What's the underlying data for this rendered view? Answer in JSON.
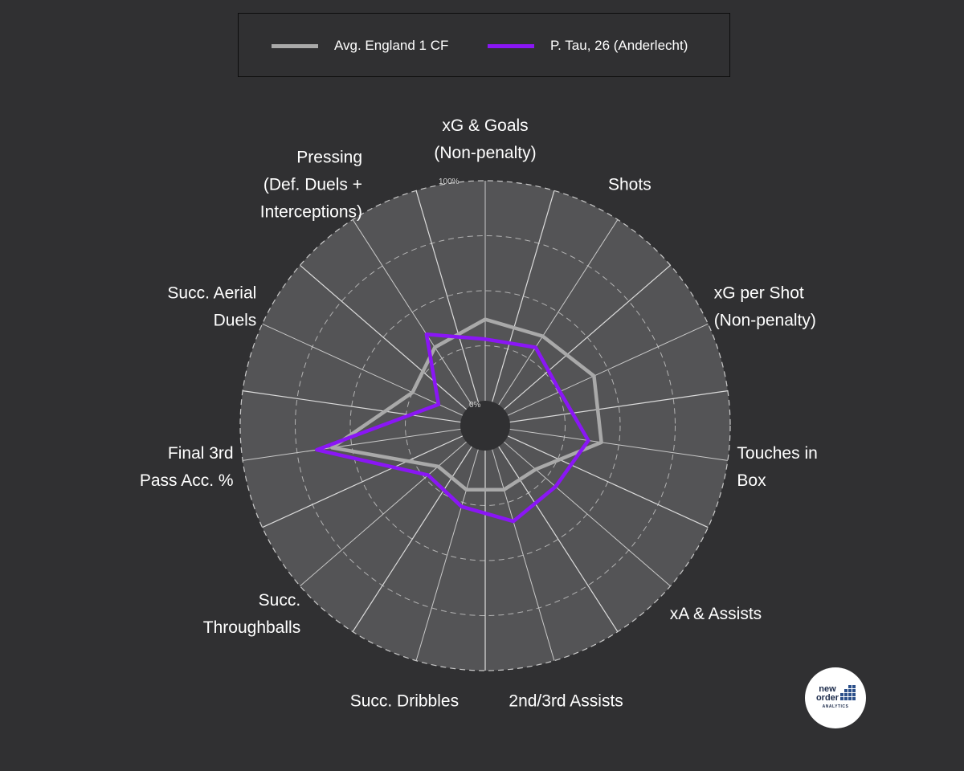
{
  "legend": {
    "items": [
      {
        "label": "Avg. England 1 CF",
        "color": "#a9a9a9"
      },
      {
        "label": "P. Tau, 26 (Anderlecht)",
        "color": "#8a16f5"
      }
    ]
  },
  "chart_data": {
    "type": "radar",
    "categories": [
      "xG & Goals\n(Non-penalty)",
      "Shots",
      "xG per Shot\n(Non-penalty)",
      "Touches in\nBox",
      "xA & Assists",
      "2nd/3rd Assists",
      "Succ. Dribbles",
      "Succ.\nThroughballs",
      "Final 3rd\nPass Acc. %",
      "Succ. Aerial\nDuels",
      "Pressing\n(Def. Duels +\nInterceptions)"
    ],
    "series": [
      {
        "name": "Avg. England 1 CF",
        "color": "#a9a9a9",
        "values": [
          37,
          37,
          43,
          42,
          19,
          19,
          19,
          17,
          59,
          25,
          31
        ]
      },
      {
        "name": "P. Tau, 26 (Anderlecht)",
        "color": "#8a16f5",
        "values": [
          28,
          31,
          26,
          36,
          31,
          34,
          27,
          23,
          66,
          12,
          38
        ]
      }
    ],
    "range": [
      0,
      100
    ],
    "tick_labels": [
      "0%",
      "100%"
    ],
    "grid_levels": [
      25,
      50,
      75
    ],
    "legend_position": "top",
    "background": "#303032",
    "panel_color": "#545456"
  },
  "logo": {
    "line1": "new",
    "line2": "order",
    "line3": "ANALYTICS"
  }
}
